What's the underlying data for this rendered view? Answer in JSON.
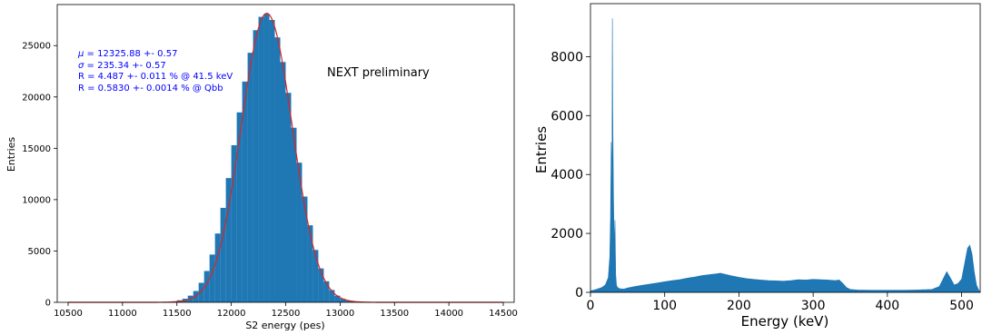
{
  "chart_data": [
    {
      "type": "bar",
      "xlabel": "S2 energy (pes)",
      "ylabel": "Entries",
      "xlim": [
        10400,
        14600
      ],
      "ylim": [
        0,
        29000
      ],
      "xticks": [
        10500,
        11000,
        11500,
        12000,
        12500,
        13000,
        13500,
        14000,
        14500
      ],
      "yticks": [
        0,
        5000,
        10000,
        15000,
        20000,
        25000
      ],
      "xtick_labels": [
        "10500",
        "11000",
        "11500",
        "12000",
        "12500",
        "13000",
        "13500",
        "14000",
        "14500"
      ],
      "ytick_labels": [
        "0",
        "5000",
        "10000",
        "15000",
        "20000",
        "25000"
      ],
      "grid": false,
      "bar_color": "#1f77b4",
      "fit_color": "#d62728",
      "histogram": {
        "bin_width": 50,
        "bin_centers": [
          11425,
          11475,
          11525,
          11575,
          11625,
          11675,
          11725,
          11775,
          11825,
          11875,
          11925,
          11975,
          12025,
          12075,
          12125,
          12175,
          12225,
          12275,
          12325,
          12375,
          12425,
          12475,
          12525,
          12575,
          12625,
          12675,
          12725,
          12775,
          12825,
          12875,
          12925,
          12975,
          13025,
          13075,
          13125,
          13175,
          13225,
          13275
        ],
        "counts": [
          50,
          100,
          200,
          350,
          650,
          1100,
          1900,
          3050,
          4650,
          6700,
          9200,
          12100,
          15300,
          18500,
          21500,
          24300,
          26500,
          27800,
          28100,
          27500,
          25800,
          23400,
          20400,
          17000,
          13600,
          10300,
          7500,
          5100,
          3300,
          2050,
          1200,
          650,
          350,
          180,
          90,
          50,
          30,
          15
        ]
      },
      "fit": {
        "mu": 12325.88,
        "sigma": 235.34,
        "amplitude": 28150,
        "x_range": [
          10500,
          14500
        ]
      },
      "annotations": [
        "$\\mu$ = 12325.88 +- 0.57",
        "$\\sigma$ = 235.34 +- 0.57",
        "R = 4.487 +- 0.011 % @ 41.5 keV",
        "R = 0.5830 +- 0.0014 % @ Qbb"
      ],
      "label_text": "NEXT preliminary",
      "annotation_color": "#0000ff"
    },
    {
      "type": "bar",
      "xlabel": "Energy (keV)",
      "ylabel": "Entries",
      "xlim": [
        0,
        525
      ],
      "ylim": [
        0,
        9800
      ],
      "xticks": [
        0,
        100,
        200,
        300,
        400,
        500
      ],
      "yticks": [
        0,
        2000,
        4000,
        6000,
        8000
      ],
      "xtick_labels": [
        "0",
        "100",
        "200",
        "300",
        "400",
        "500"
      ],
      "ytick_labels": [
        "0",
        "2000",
        "4000",
        "6000",
        "8000"
      ],
      "grid": false,
      "bar_color": "#1f77b4",
      "spectrum": {
        "x": [
          0,
          5,
          10,
          15,
          20,
          24,
          26,
          27,
          28,
          29,
          29.5,
          30,
          31,
          32,
          33,
          34,
          35,
          36,
          38,
          40,
          45,
          50,
          60,
          70,
          80,
          90,
          100,
          110,
          120,
          130,
          140,
          150,
          160,
          170,
          175,
          180,
          190,
          200,
          210,
          220,
          230,
          240,
          250,
          260,
          270,
          280,
          290,
          300,
          310,
          320,
          330,
          335,
          340,
          345,
          350,
          360,
          380,
          400,
          420,
          440,
          460,
          470,
          475,
          480,
          485,
          490,
          495,
          500,
          505,
          508,
          511,
          514,
          517,
          520,
          523,
          525
        ],
        "y": [
          50,
          80,
          120,
          160,
          250,
          500,
          1200,
          2500,
          5100,
          3600,
          9300,
          6200,
          3300,
          1500,
          2450,
          600,
          250,
          180,
          140,
          120,
          110,
          150,
          200,
          240,
          280,
          320,
          360,
          400,
          430,
          480,
          520,
          570,
          600,
          630,
          650,
          620,
          560,
          510,
          470,
          440,
          420,
          400,
          390,
          380,
          400,
          430,
          420,
          440,
          430,
          420,
          400,
          420,
          300,
          160,
          100,
          80,
          70,
          70,
          70,
          80,
          100,
          200,
          450,
          700,
          480,
          250,
          300,
          450,
          1100,
          1500,
          1600,
          1300,
          700,
          250,
          80,
          0
        ]
      }
    }
  ]
}
